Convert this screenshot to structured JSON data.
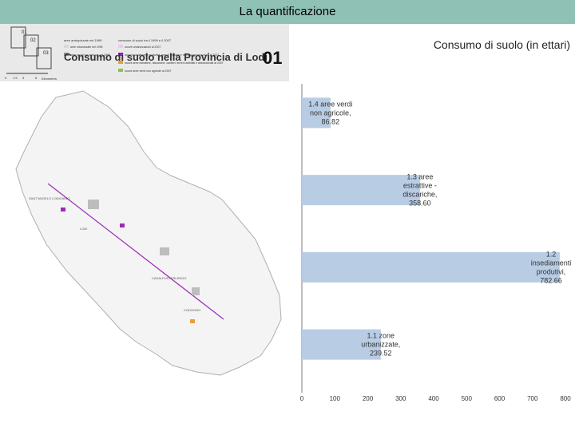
{
  "header": {
    "title": "La quantificazione"
  },
  "map": {
    "title": "Consumo di suolo nella Provincia di Lodi",
    "sheet_number": "01",
    "grid_labels": [
      "01",
      "02",
      "03"
    ],
    "scale_labels": [
      "0",
      "1.5",
      "3",
      "6"
    ],
    "scale_unit": "Kilometers",
    "legend_headings": [
      "aree antropizzate nel 1999",
      "consumo di suolo tra il 1999 e il 2007"
    ],
    "legend_left": [
      "aree urbanizzate nel 1999",
      "aree verdi non agricole nel 1999"
    ],
    "legend_right": [
      "nuove urbanizzazioni al 2007",
      "nuovi insediamenti produttivi, grandi impianti e reti di comunicazione al 2007",
      "nuove aree estrattive, discariche, cantieri, terreni artefatti e abbandonati al 2007",
      "nuove aree verdi non agricole al 2007"
    ],
    "legend_colors": {
      "urban_1999": "#d9d9d9",
      "green_1999": "#8c8c8c",
      "new_urban": "#f1c6ef",
      "new_productive": "#9b2bb5",
      "new_extractive": "#e8a03a",
      "new_green": "#8bc34a"
    },
    "town_labels": [
      "LODI",
      "CODOGNO",
      "SANT'ANGELO LODIGIANO",
      "CASALPUSTERLENGO"
    ]
  },
  "chart_data": {
    "type": "bar",
    "orientation": "horizontal",
    "title": "Consumo di suolo (in ettari)",
    "categories": [
      "1.4 aree verdi non agricole",
      "1.3 aree estrattive - discariche",
      "1.2 insediamenti produtivi",
      "1.1 zone urbanizzate"
    ],
    "values": [
      86.82,
      358.6,
      782.66,
      239.52
    ],
    "data_labels": [
      [
        "1.4 aree verdi",
        "non agricole,",
        "86.82"
      ],
      [
        "1.3 aree",
        "estrattive -",
        "discariche,",
        "358.60"
      ],
      [
        "1.2",
        "insediamenti",
        "produtivi,",
        "782.66"
      ],
      [
        "1.1 zone",
        "urbanizzate,",
        "239.52"
      ]
    ],
    "xlim": [
      0,
      800
    ],
    "xticks": [
      "0",
      "100",
      "200",
      "300",
      "400",
      "500",
      "600",
      "700",
      "800"
    ],
    "bar_color": "#b8cce4",
    "xlabel": "",
    "ylabel": ""
  }
}
